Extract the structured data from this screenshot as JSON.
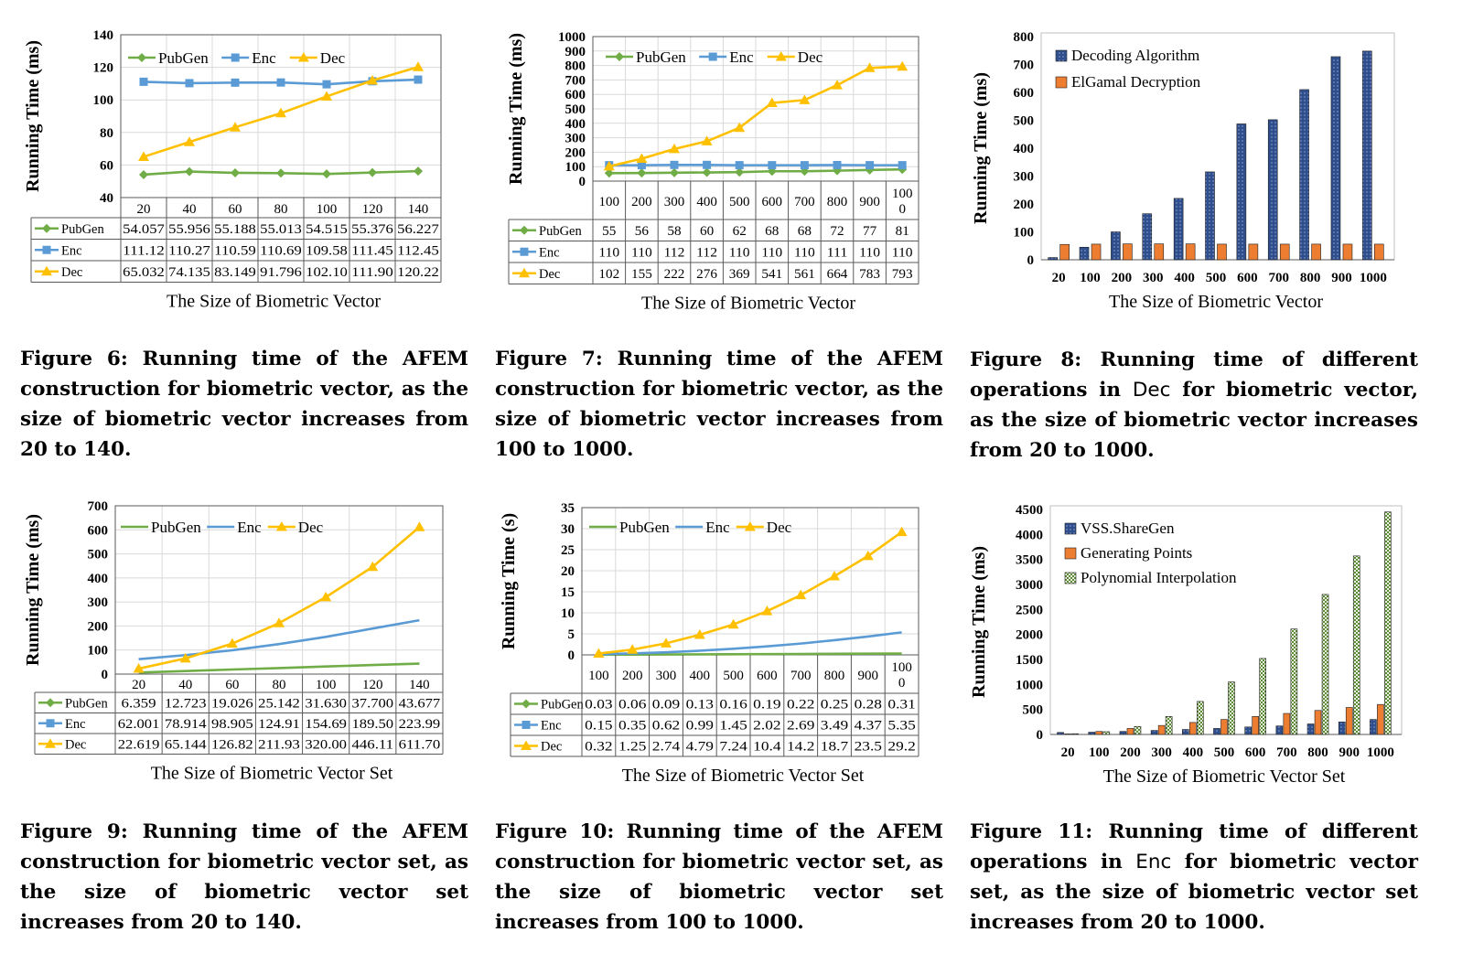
{
  "figures": [
    {
      "id": "fig6",
      "caption": "Figure 6: Running time of the AFEM construction for biometric vector, as the size of biometric vector increases from 20 to 140."
    },
    {
      "id": "fig7",
      "caption": "Figure 7: Running time of the AFEM construction for biometric vector, as the size of biometric vector increases from 100 to 1000."
    },
    {
      "id": "fig8",
      "caption_parts": [
        "Figure 8: Running time of different operations in ",
        "Dec",
        " for biometric vector, as the size of biometric vector increases from 20 to 1000."
      ]
    },
    {
      "id": "fig9",
      "caption": "Figure 9: Running time of the AFEM construction for biometric vector set, as the size of biometric vector set increases from 20 to 140."
    },
    {
      "id": "fig10",
      "caption": "Figure 10: Running time of the AFEM construction for biometric vector set, as the size of biometric vector set increases from 100 to 1000."
    },
    {
      "id": "fig11",
      "caption_parts": [
        "Figure 11: Running time of different operations in ",
        "Enc",
        " for biometric vector set, as the size of biometric vector set increases from 20 to 1000."
      ]
    }
  ],
  "colors": {
    "pubgen": "#70AD47",
    "enc": "#5B9BD5",
    "dec": "#FFC000",
    "decoding": "#2F4E8E",
    "elgamal": "#ED7D31",
    "vss": "#2F4E8E",
    "genpoints": "#ED7D31",
    "poly": "#A9C48A"
  },
  "chart_data": [
    {
      "id": "fig6",
      "type": "line",
      "ylabel": "Running Time (ms)",
      "xlabel": "The Size of Biometric Vector",
      "ylim": [
        40,
        140
      ],
      "yticks": [
        "40",
        "60",
        "80",
        "100",
        "120",
        "140"
      ],
      "categories": [
        "20",
        "40",
        "60",
        "80",
        "100",
        "120",
        "140"
      ],
      "series": [
        {
          "name": "PubGen",
          "color": "#70AD47",
          "marker": "diamond",
          "values": [
            54.057,
            55.956,
            55.188,
            55.013,
            54.515,
            55.376,
            56.227
          ],
          "labels": [
            "54.057",
            "55.956",
            "55.188",
            "55.013",
            "54.515",
            "55.376",
            "56.227"
          ]
        },
        {
          "name": "Enc",
          "color": "#5B9BD5",
          "marker": "square",
          "values": [
            111.12,
            110.27,
            110.59,
            110.69,
            109.58,
            111.45,
            112.45
          ],
          "labels": [
            "111.12",
            "110.27",
            "110.59",
            "110.69",
            "109.58",
            "111.45",
            "112.45"
          ]
        },
        {
          "name": "Dec",
          "color": "#FFC000",
          "marker": "triangle",
          "values": [
            65.032,
            74.135,
            83.149,
            91.796,
            102.1,
            111.9,
            120.22
          ],
          "labels": [
            "65.032",
            "74.135",
            "83.149",
            "91.796",
            "102.10",
            "111.90",
            "120.22"
          ]
        }
      ]
    },
    {
      "id": "fig7",
      "type": "line",
      "ylabel": "Running Time (ms)",
      "xlabel": "The Size of Biometric Vector",
      "ylim": [
        0,
        1000
      ],
      "yticks": [
        "0",
        "100",
        "200",
        "300",
        "400",
        "500",
        "600",
        "700",
        "800",
        "900",
        "1000"
      ],
      "categories": [
        "100",
        "200",
        "300",
        "400",
        "500",
        "600",
        "700",
        "800",
        "900",
        "1000"
      ],
      "category_labels": [
        [
          "100"
        ],
        [
          "200"
        ],
        [
          "300"
        ],
        [
          "400"
        ],
        [
          "500"
        ],
        [
          "600"
        ],
        [
          "700"
        ],
        [
          "800"
        ],
        [
          "900"
        ],
        [
          "100",
          "0"
        ]
      ],
      "series": [
        {
          "name": "PubGen",
          "color": "#70AD47",
          "marker": "diamond",
          "values": [
            55,
            56,
            58,
            60,
            62,
            68,
            68,
            72,
            77,
            81
          ],
          "labels": [
            "55",
            "56",
            "58",
            "60",
            "62",
            "68",
            "68",
            "72",
            "77",
            "81"
          ]
        },
        {
          "name": "Enc",
          "color": "#5B9BD5",
          "marker": "square",
          "values": [
            110,
            110,
            112,
            112,
            110,
            110,
            110,
            111,
            110,
            110
          ],
          "labels": [
            "110",
            "110",
            "112",
            "112",
            "110",
            "110",
            "110",
            "111",
            "110",
            "110"
          ]
        },
        {
          "name": "Dec",
          "color": "#FFC000",
          "marker": "triangle",
          "values": [
            102,
            155,
            222,
            276,
            369,
            541,
            561,
            664,
            783,
            793
          ],
          "labels": [
            "102",
            "155",
            "222",
            "276",
            "369",
            "541",
            "561",
            "664",
            "783",
            "793"
          ]
        }
      ]
    },
    {
      "id": "fig8",
      "type": "bar",
      "ylabel": "Running Time (ms)",
      "xlabel": "The Size of Biometric Vector",
      "ylim": [
        0,
        800
      ],
      "yticks": [
        "0",
        "100",
        "200",
        "300",
        "400",
        "500",
        "600",
        "700",
        "800"
      ],
      "categories": [
        "20",
        "100",
        "200",
        "300",
        "400",
        "500",
        "600",
        "700",
        "800",
        "900",
        "1000"
      ],
      "series": [
        {
          "name": "Decoding Algorithm",
          "color": "#2F4E8E",
          "pattern": "dots",
          "values": [
            8,
            45,
            100,
            165,
            220,
            315,
            487,
            502,
            610,
            728,
            748
          ]
        },
        {
          "name": "ElGamal Decryption",
          "color": "#ED7D31",
          "pattern": "none",
          "values": [
            55,
            56,
            57,
            57,
            57,
            56,
            56,
            56,
            56,
            56,
            56
          ]
        }
      ]
    },
    {
      "id": "fig9",
      "type": "line",
      "ylabel": "Running Time (ms)",
      "xlabel": "The Size of Biometric Vector Set",
      "ylim": [
        0,
        700
      ],
      "yticks": [
        "0",
        "100",
        "200",
        "300",
        "400",
        "500",
        "600",
        "700"
      ],
      "categories": [
        "20",
        "40",
        "60",
        "80",
        "100",
        "120",
        "140"
      ],
      "series": [
        {
          "name": "PubGen",
          "color": "#70AD47",
          "marker": "none",
          "values": [
            6.359,
            12.723,
            19.026,
            25.142,
            31.63,
            37.7,
            43.677
          ],
          "labels": [
            "6.359",
            "12.723",
            "19.026",
            "25.142",
            "31.630",
            "37.700",
            "43.677"
          ]
        },
        {
          "name": "Enc",
          "color": "#5B9BD5",
          "marker": "none",
          "values": [
            62.001,
            78.914,
            98.905,
            124.91,
            154.69,
            189.5,
            223.99
          ],
          "labels": [
            "62.001",
            "78.914",
            "98.905",
            "124.91",
            "154.69",
            "189.50",
            "223.99"
          ]
        },
        {
          "name": "Dec",
          "color": "#FFC000",
          "marker": "triangle",
          "values": [
            22.619,
            65.144,
            126.82,
            211.93,
            320.0,
            446.11,
            611.7
          ],
          "labels": [
            "22.619",
            "65.144",
            "126.82",
            "211.93",
            "320.00",
            "446.11",
            "611.70"
          ]
        }
      ]
    },
    {
      "id": "fig10",
      "type": "line",
      "ylabel": "Running Time (s)",
      "xlabel": "The Size of Biometric Vector Set",
      "ylim": [
        0,
        35
      ],
      "yticks": [
        "0",
        "5",
        "10",
        "15",
        "20",
        "25",
        "30",
        "35"
      ],
      "categories": [
        "100",
        "200",
        "300",
        "400",
        "500",
        "600",
        "700",
        "800",
        "900",
        "1000"
      ],
      "category_labels": [
        [
          "100"
        ],
        [
          "200"
        ],
        [
          "300"
        ],
        [
          "400"
        ],
        [
          "500"
        ],
        [
          "600"
        ],
        [
          "700"
        ],
        [
          "800"
        ],
        [
          "900"
        ],
        [
          "100",
          "0"
        ]
      ],
      "series": [
        {
          "name": "PubGen",
          "color": "#70AD47",
          "marker": "none",
          "values": [
            0.03,
            0.06,
            0.09,
            0.13,
            0.16,
            0.19,
            0.22,
            0.25,
            0.28,
            0.31
          ],
          "labels": [
            "0.03",
            "0.06",
            "0.09",
            "0.13",
            "0.16",
            "0.19",
            "0.22",
            "0.25",
            "0.28",
            "0.31"
          ]
        },
        {
          "name": "Enc",
          "color": "#5B9BD5",
          "marker": "none",
          "values": [
            0.15,
            0.35,
            0.62,
            0.99,
            1.45,
            2.02,
            2.69,
            3.49,
            4.37,
            5.35
          ],
          "labels": [
            "0.15",
            "0.35",
            "0.62",
            "0.99",
            "1.45",
            "2.02",
            "2.69",
            "3.49",
            "4.37",
            "5.35"
          ]
        },
        {
          "name": "Dec",
          "color": "#FFC000",
          "marker": "triangle",
          "values": [
            0.32,
            1.25,
            2.74,
            4.79,
            7.24,
            10.4,
            14.2,
            18.7,
            23.5,
            29.2
          ],
          "labels": [
            "0.32",
            "1.25",
            "2.74",
            "4.79",
            "7.24",
            "10.4",
            "14.2",
            "18.7",
            "23.5",
            "29.2"
          ]
        }
      ]
    },
    {
      "id": "fig11",
      "type": "bar",
      "ylabel": "Running Time (ms)",
      "xlabel": "The Size of Biometric Vector Set",
      "ylim": [
        0,
        4500
      ],
      "yticks": [
        "0",
        "500",
        "1000",
        "1500",
        "2000",
        "2500",
        "3000",
        "3500",
        "4000",
        "4500"
      ],
      "categories": [
        "20",
        "100",
        "200",
        "300",
        "400",
        "500",
        "600",
        "700",
        "800",
        "900",
        "1000"
      ],
      "series": [
        {
          "name": "VSS.ShareGen",
          "color": "#2F4E8E",
          "pattern": "dots",
          "values": [
            40,
            45,
            60,
            80,
            100,
            120,
            150,
            170,
            210,
            250,
            300
          ]
        },
        {
          "name": "Generating Points",
          "color": "#ED7D31",
          "pattern": "none",
          "values": [
            10,
            60,
            120,
            180,
            240,
            300,
            360,
            420,
            480,
            540,
            600
          ]
        },
        {
          "name": "Polynomial Interpolation",
          "color": "#A9C48A",
          "pattern": "checker",
          "values": [
            15,
            55,
            160,
            360,
            660,
            1050,
            1520,
            2110,
            2800,
            3570,
            4450
          ]
        }
      ]
    }
  ]
}
